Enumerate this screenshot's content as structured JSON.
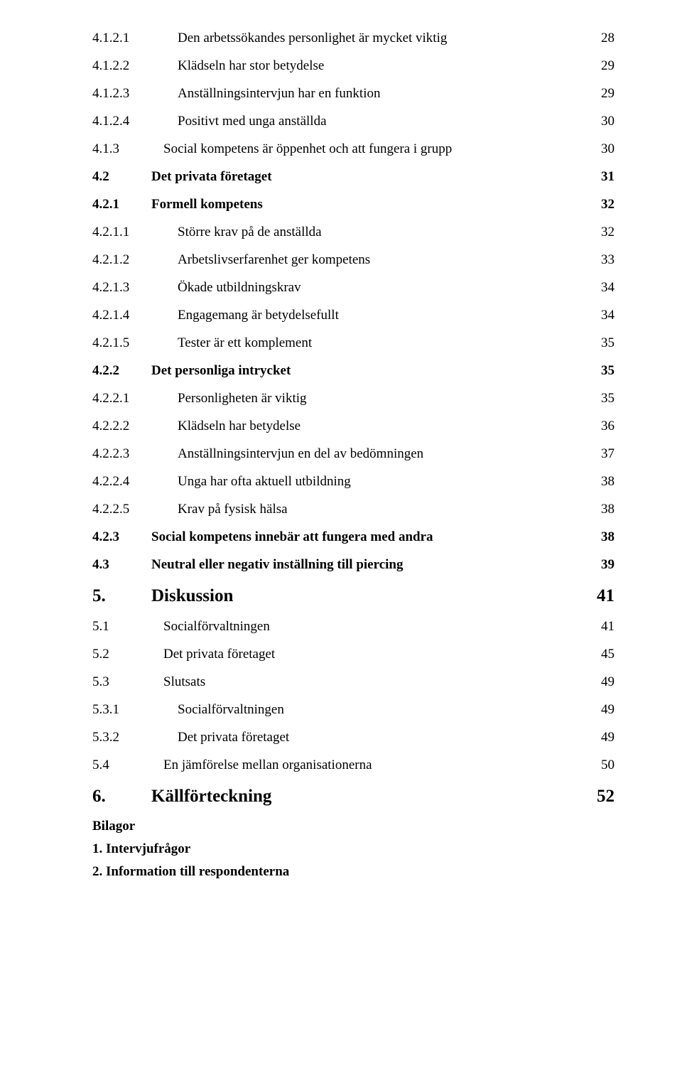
{
  "entries": [
    {
      "num": "4.1.2.1",
      "title": "Den arbetssökandes personlighet är mycket viktig",
      "page": "28",
      "level": 4
    },
    {
      "num": "4.1.2.2",
      "title": "Klädseln har stor betydelse",
      "page": "29",
      "level": 4
    },
    {
      "num": "4.1.2.3",
      "title": "Anställningsintervjun har en funktion",
      "page": "29",
      "level": 4
    },
    {
      "num": "4.1.2.4",
      "title": "Positivt med unga anställda",
      "page": "30",
      "level": 4
    },
    {
      "num": "4.1.3",
      "title": "Social kompetens är öppenhet och att fungera i grupp",
      "page": "30",
      "level": 3
    },
    {
      "num": "4.2",
      "title": "Det privata företaget",
      "page": "31",
      "level": 2
    },
    {
      "num": "4.2.1",
      "title": "Formell kompetens",
      "page": "32",
      "level": 2
    },
    {
      "num": "4.2.1.1",
      "title": "Större krav på de anställda",
      "page": "32",
      "level": 4
    },
    {
      "num": "4.2.1.2",
      "title": "Arbetslivserfarenhet ger kompetens",
      "page": "33",
      "level": 4
    },
    {
      "num": "4.2.1.3",
      "title": "Ökade utbildningskrav",
      "page": "34",
      "level": 4
    },
    {
      "num": "4.2.1.4",
      "title": "Engagemang är betydelsefullt",
      "page": "34",
      "level": 4
    },
    {
      "num": "4.2.1.5",
      "title": "Tester är ett komplement",
      "page": "35",
      "level": 4
    },
    {
      "num": "4.2.2",
      "title": "Det personliga intrycket",
      "page": "35",
      "level": 2
    },
    {
      "num": "4.2.2.1",
      "title": "Personligheten är viktig",
      "page": "35",
      "level": 4
    },
    {
      "num": "4.2.2.2",
      "title": "Klädseln har betydelse",
      "page": "36",
      "level": 4
    },
    {
      "num": "4.2.2.3",
      "title": "Anställningsintervjun en del av bedömningen",
      "page": "37",
      "level": 4
    },
    {
      "num": "4.2.2.4",
      "title": "Unga har ofta aktuell utbildning",
      "page": "38",
      "level": 4
    },
    {
      "num": "4.2.2.5",
      "title": "Krav på fysisk hälsa",
      "page": "38",
      "level": 4
    },
    {
      "num": "4.2.3",
      "title": "Social kompetens innebär att fungera med andra",
      "page": "38",
      "level": 2
    },
    {
      "num": "4.3",
      "title": "Neutral eller negativ inställning till piercing",
      "page": "39",
      "level": 2
    },
    {
      "num": "5.",
      "title": "Diskussion",
      "page": "41",
      "level": 1
    },
    {
      "num": "5.1",
      "title": "Socialförvaltningen",
      "page": "41",
      "level": 3
    },
    {
      "num": "5.2",
      "title": "Det privata företaget",
      "page": "45",
      "level": 3
    },
    {
      "num": "5.3",
      "title": "Slutsats",
      "page": "49",
      "level": 3
    },
    {
      "num": "5.3.1",
      "title": "Socialförvaltningen",
      "page": "49",
      "level": 4
    },
    {
      "num": "5.3.2",
      "title": "Det privata företaget",
      "page": "49",
      "level": 4
    },
    {
      "num": "5.4",
      "title": "En jämförelse mellan organisationerna",
      "page": "50",
      "level": 3
    },
    {
      "num": "6.",
      "title": "Källförteckning",
      "page": "52",
      "level": 1
    }
  ],
  "appendix": {
    "heading": "Bilagor",
    "items": [
      "1. Intervjufrågor",
      "2. Information till respondenterna"
    ]
  },
  "styles": {
    "background_color": "#ffffff",
    "text_color": "#000000",
    "font_family": "Times New Roman",
    "level_fontsize": {
      "1": 25,
      "2": 19,
      "3": 19,
      "4": 19
    },
    "level_bold": {
      "1": true,
      "2": true,
      "3": false,
      "4": false
    }
  }
}
